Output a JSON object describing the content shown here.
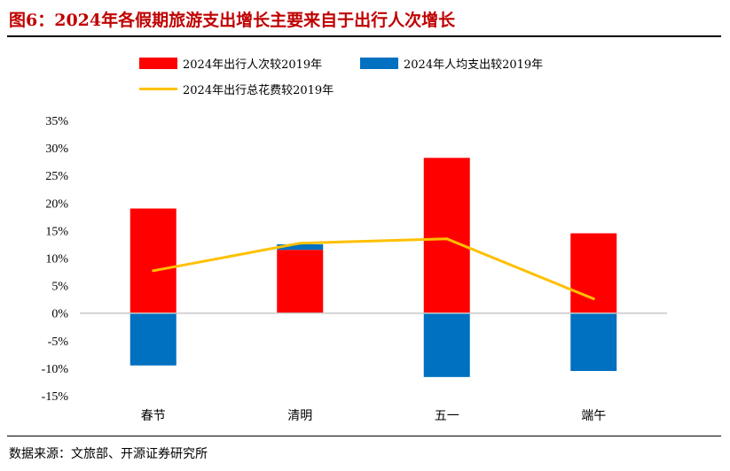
{
  "header": {
    "title": "图6：2024年各假期旅游支出增长主要来自于出行人次增长"
  },
  "footer": {
    "source": "数据来源：文旅部、开源证券研究所"
  },
  "colors": {
    "red": "#ff0000",
    "blue": "#0070c0",
    "line": "#ffc000"
  },
  "chart_data": {
    "type": "bar+line",
    "title": "2024年各假期旅游支出增长主要来自于出行人次增长",
    "categories": [
      "春节",
      "清明",
      "五一",
      "端午"
    ],
    "series": [
      {
        "name": "2024年出行人次较2019年",
        "type": "bar",
        "values": [
          19.0,
          11.5,
          28.2,
          14.5
        ]
      },
      {
        "name": "2024年人均支出较2019年",
        "type": "bar",
        "values": [
          -9.5,
          1.0,
          -11.6,
          -10.5
        ]
      },
      {
        "name": "2024年出行总花费较2019年",
        "type": "line",
        "values": [
          7.7,
          12.7,
          13.5,
          2.6
        ]
      }
    ],
    "yticks": [
      "35%",
      "30%",
      "25%",
      "20%",
      "15%",
      "10%",
      "5%",
      "0%",
      "-5%",
      "-10%",
      "-15%"
    ],
    "ylim": [
      -15,
      35
    ],
    "ylabel": "",
    "xlabel": "",
    "legend_position": "top"
  }
}
